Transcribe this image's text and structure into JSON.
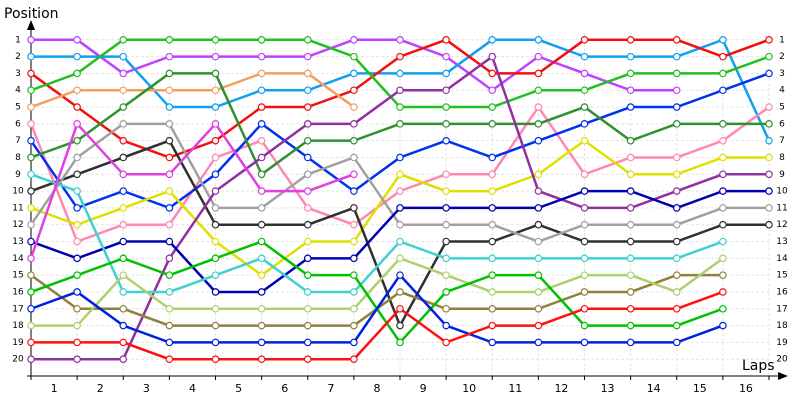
{
  "chart_data": {
    "type": "line",
    "y_label": "Position",
    "x_label": "Laps",
    "x": [
      0,
      1,
      2,
      3,
      4,
      5,
      6,
      7,
      8,
      9,
      10,
      11,
      12,
      13,
      14,
      15,
      16
    ],
    "xlim": [
      0,
      16
    ],
    "xticks": [
      {
        "value": 0.5,
        "label": "1"
      },
      {
        "value": 1.5,
        "label": "2"
      },
      {
        "value": 2.5,
        "label": "3"
      },
      {
        "value": 3.5,
        "label": "4"
      },
      {
        "value": 4.5,
        "label": "5"
      },
      {
        "value": 5.5,
        "label": "6"
      },
      {
        "value": 6.5,
        "label": "7"
      },
      {
        "value": 7.5,
        "label": "8"
      },
      {
        "value": 8.5,
        "label": "9"
      },
      {
        "value": 9.5,
        "label": "10"
      },
      {
        "value": 10.5,
        "label": "11"
      },
      {
        "value": 11.5,
        "label": "12"
      },
      {
        "value": 12.5,
        "label": "13"
      },
      {
        "value": 13.5,
        "label": "14"
      },
      {
        "value": 14.5,
        "label": "15"
      },
      {
        "value": 15.5,
        "label": "16"
      }
    ],
    "ylim": [
      21,
      0
    ],
    "yticks": [
      1,
      2,
      3,
      4,
      5,
      6,
      7,
      8,
      9,
      10,
      11,
      12,
      13,
      14,
      15,
      16,
      17,
      18,
      19,
      20
    ],
    "grid": true,
    "series": [
      {
        "color": "#c040ff",
        "values": [
          1,
          1,
          3,
          2,
          2,
          2,
          2,
          1,
          1,
          2,
          4,
          2,
          3,
          4,
          4,
          null,
          null
        ]
      },
      {
        "color": "#10a0f0",
        "values": [
          2,
          2,
          2,
          5,
          5,
          4,
          4,
          3,
          3,
          3,
          1,
          1,
          2,
          2,
          2,
          1,
          7
        ]
      },
      {
        "color": "#f01010",
        "values": [
          3,
          5,
          7,
          8,
          7,
          5,
          5,
          4,
          2,
          1,
          3,
          3,
          1,
          1,
          1,
          2,
          1
        ]
      },
      {
        "color": "#20c020",
        "values": [
          4,
          3,
          1,
          1,
          1,
          1,
          1,
          2,
          5,
          5,
          5,
          4,
          4,
          3,
          3,
          3,
          2
        ]
      },
      {
        "color": "#f0a060",
        "values": [
          5,
          4,
          4,
          4,
          4,
          3,
          3,
          5,
          null,
          null,
          null,
          null,
          null,
          null,
          null,
          null,
          null
        ]
      },
      {
        "color": "#ff88b0",
        "values": [
          6,
          13,
          12,
          12,
          8,
          7,
          11,
          12,
          10,
          9,
          9,
          5,
          9,
          8,
          8,
          7,
          5
        ]
      },
      {
        "color": "#0030f0",
        "values": [
          7,
          11,
          10,
          11,
          9,
          6,
          8,
          10,
          8,
          7,
          8,
          7,
          6,
          5,
          5,
          4,
          3
        ]
      },
      {
        "color": "#309030",
        "values": [
          8,
          7,
          5,
          3,
          3,
          9,
          7,
          7,
          6,
          6,
          6,
          6,
          5,
          7,
          6,
          6,
          6
        ]
      },
      {
        "color": "#e0e000",
        "values": [
          11,
          12,
          11,
          10,
          13,
          15,
          13,
          13,
          9,
          10,
          10,
          9,
          7,
          9,
          9,
          8,
          8
        ]
      },
      {
        "color": "#303030",
        "values": [
          10,
          9,
          8,
          7,
          12,
          12,
          12,
          11,
          18,
          13,
          13,
          12,
          13,
          13,
          13,
          12,
          12
        ]
      },
      {
        "color": "#a0a0a0",
        "values": [
          12,
          8,
          6,
          6,
          11,
          11,
          9,
          8,
          12,
          12,
          12,
          13,
          12,
          12,
          12,
          11,
          11
        ]
      },
      {
        "color": "#9030a0",
        "values": [
          20,
          20,
          20,
          14,
          10,
          8,
          6,
          6,
          4,
          4,
          2,
          10,
          11,
          11,
          10,
          9,
          9
        ]
      },
      {
        "color": "#0000b0",
        "values": [
          13,
          14,
          13,
          13,
          16,
          16,
          14,
          14,
          11,
          11,
          11,
          11,
          10,
          10,
          11,
          10,
          10
        ]
      },
      {
        "color": "#40d0d0",
        "values": [
          9,
          10,
          16,
          16,
          15,
          14,
          16,
          16,
          13,
          14,
          14,
          14,
          14,
          14,
          14,
          13,
          null
        ]
      },
      {
        "color": "#908040",
        "values": [
          15,
          17,
          17,
          18,
          18,
          18,
          18,
          18,
          16,
          17,
          17,
          17,
          16,
          16,
          15,
          15,
          null
        ]
      },
      {
        "color": "#b0d070",
        "values": [
          18,
          18,
          15,
          17,
          17,
          17,
          17,
          17,
          14,
          15,
          16,
          16,
          15,
          15,
          16,
          14,
          null
        ]
      },
      {
        "color": "#00c000",
        "values": [
          16,
          15,
          14,
          15,
          14,
          13,
          15,
          15,
          19,
          16,
          15,
          15,
          18,
          18,
          18,
          17,
          null
        ]
      },
      {
        "color": "#0020e0",
        "values": [
          17,
          16,
          18,
          19,
          19,
          19,
          19,
          19,
          15,
          18,
          19,
          19,
          19,
          19,
          19,
          18,
          null
        ]
      },
      {
        "color": "#ff1010",
        "values": [
          19,
          19,
          19,
          20,
          20,
          20,
          20,
          20,
          17,
          19,
          18,
          18,
          17,
          17,
          17,
          16,
          null
        ]
      },
      {
        "color": "#e040e0",
        "values": [
          14,
          6,
          9,
          9,
          6,
          10,
          10,
          9,
          null,
          null,
          null,
          null,
          null,
          null,
          null,
          null,
          null
        ]
      }
    ]
  }
}
